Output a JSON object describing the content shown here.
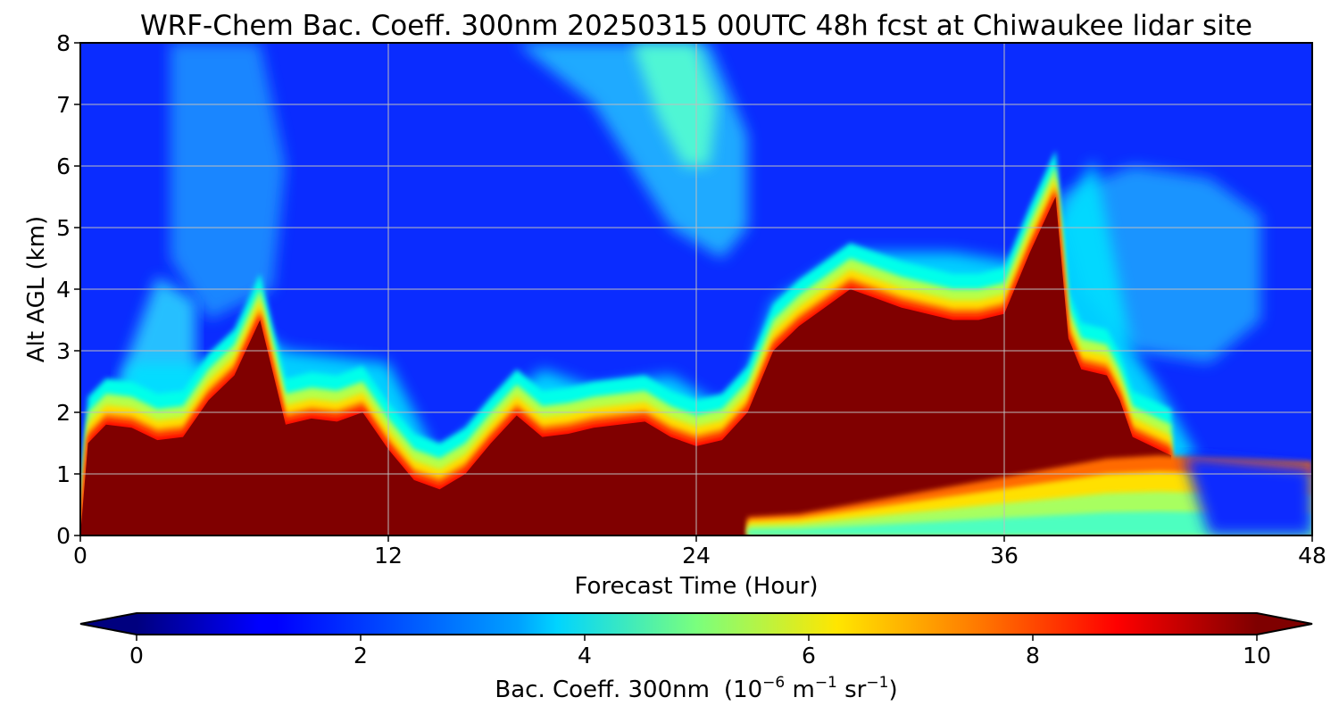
{
  "chart_data": {
    "type": "heatmap",
    "title": "WRF-Chem Bac. Coeff. 300nm  20250315 00UTC 48h fcst at Chiwaukee lidar site",
    "xlabel": "Forecast Time (Hour)",
    "ylabel": "Alt AGL (km)",
    "xlim": [
      0,
      48
    ],
    "ylim": [
      0,
      8
    ],
    "x_ticks": [
      "0",
      "12",
      "24",
      "36",
      "48"
    ],
    "y_ticks": [
      "0",
      "1",
      "2",
      "3",
      "4",
      "5",
      "6",
      "7",
      "8"
    ],
    "grid": true,
    "colormap": "jet",
    "colorbar": {
      "orientation": "horizontal",
      "range": [
        0,
        10
      ],
      "ticks": [
        "0",
        "2",
        "4",
        "6",
        "8",
        "10"
      ],
      "label": "Bac. Coeff. 300nm",
      "units_prefix": "(10",
      "units_exp1": "−6",
      "units_mid": " m",
      "units_exp2": "−1",
      "units_mid2": " sr",
      "units_exp3": "−1",
      "units_suffix": ")",
      "extend": "both"
    },
    "saturated_layer_top_km": {
      "x": [
        0,
        0.3,
        1,
        2,
        3,
        4,
        5,
        6,
        7,
        8,
        9,
        10,
        11,
        12,
        13,
        14,
        15,
        16,
        17,
        18,
        19,
        20,
        21,
        22,
        23,
        24,
        25,
        26,
        27,
        28,
        29,
        30,
        31,
        32,
        33,
        34,
        35,
        36,
        37,
        38,
        38.5,
        39,
        40,
        40.5,
        41,
        42,
        42.5
      ],
      "y": [
        0,
        1.5,
        1.8,
        1.75,
        1.55,
        1.6,
        2.2,
        2.6,
        3.5,
        1.8,
        1.9,
        1.85,
        2.0,
        1.4,
        0.9,
        0.75,
        1.0,
        1.5,
        1.95,
        1.6,
        1.65,
        1.75,
        1.8,
        1.85,
        1.6,
        1.45,
        1.55,
        2.0,
        3.0,
        3.4,
        3.7,
        4.0,
        3.85,
        3.7,
        3.6,
        3.5,
        3.5,
        3.6,
        4.6,
        5.5,
        3.2,
        2.7,
        2.6,
        2.2,
        1.6,
        1.4,
        1.3
      ]
    },
    "low_level_clean_layer": {
      "x": [
        26,
        28,
        30,
        32,
        34,
        36,
        38,
        40,
        42
      ],
      "y": [
        0.3,
        0.35,
        0.5,
        0.65,
        0.8,
        0.95,
        1.1,
        1.25,
        1.3
      ]
    }
  }
}
